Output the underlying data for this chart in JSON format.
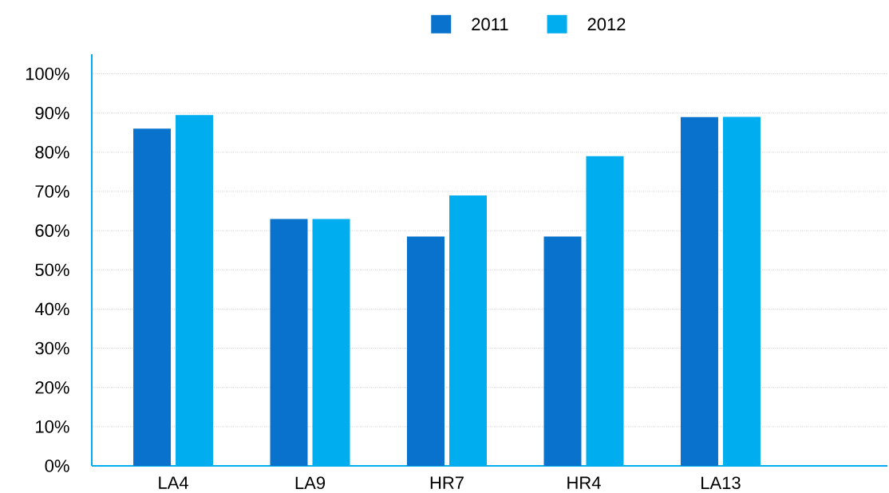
{
  "chart_data": {
    "type": "bar",
    "categories": [
      "LA4",
      "LA9",
      "HR7",
      "HR4",
      "LA13"
    ],
    "series": [
      {
        "name": "2011",
        "color": "#0872cc",
        "values": [
          86,
          63,
          58.5,
          58.5,
          89
        ]
      },
      {
        "name": "2012",
        "color": "#00adef",
        "values": [
          89.5,
          63,
          69,
          79,
          89
        ]
      }
    ],
    "ylim": [
      0,
      105
    ],
    "yticks": [
      {
        "value": 0,
        "label": "0%"
      },
      {
        "value": 10,
        "label": "10%"
      },
      {
        "value": 20,
        "label": "20%"
      },
      {
        "value": 30,
        "label": "30%"
      },
      {
        "value": 40,
        "label": "40%"
      },
      {
        "value": 50,
        "label": "50%"
      },
      {
        "value": 60,
        "label": "60%"
      },
      {
        "value": 70,
        "label": "70%"
      },
      {
        "value": 80,
        "label": "80%"
      },
      {
        "value": 90,
        "label": "90%"
      },
      {
        "value": 100,
        "label": "100%"
      }
    ],
    "grid": "y",
    "legend": "top"
  }
}
